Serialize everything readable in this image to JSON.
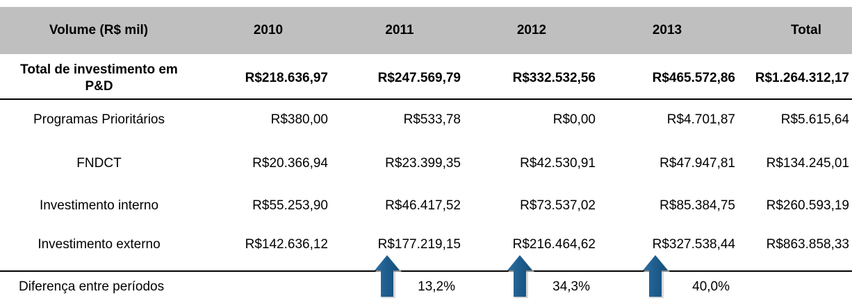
{
  "table": {
    "header": [
      "Volume (R$ mil)",
      "2010",
      "2011",
      "2012",
      "2013",
      "Total"
    ],
    "rows": [
      [
        "Total de investimento em P&D",
        "R$218.636,97",
        "R$247.569,79",
        "R$332.532,56",
        "R$465.572,86",
        "R$1.264.312,17"
      ],
      [
        "Programas Prioritários",
        "R$380,00",
        "R$533,78",
        "R$0,00",
        "R$4.701,87",
        "R$5.615,64"
      ],
      [
        "FNDCT",
        "R$20.366,94",
        "R$23.399,35",
        "R$42.530,91",
        "R$47.947,81",
        "R$134.245,01"
      ],
      [
        "Investimento interno",
        "R$55.253,90",
        "R$46.417,52",
        "R$73.537,02",
        "R$85.384,75",
        "R$260.593,19"
      ],
      [
        "Investimento externo",
        "R$142.636,12",
        "R$177.219,15",
        "R$216.464,62",
        "R$327.538,44",
        "R$863.858,33"
      ]
    ],
    "difference": {
      "label": "Diferença entre períodos",
      "values": [
        "13,2%",
        "34,3%",
        "40,0%"
      ]
    }
  }
}
